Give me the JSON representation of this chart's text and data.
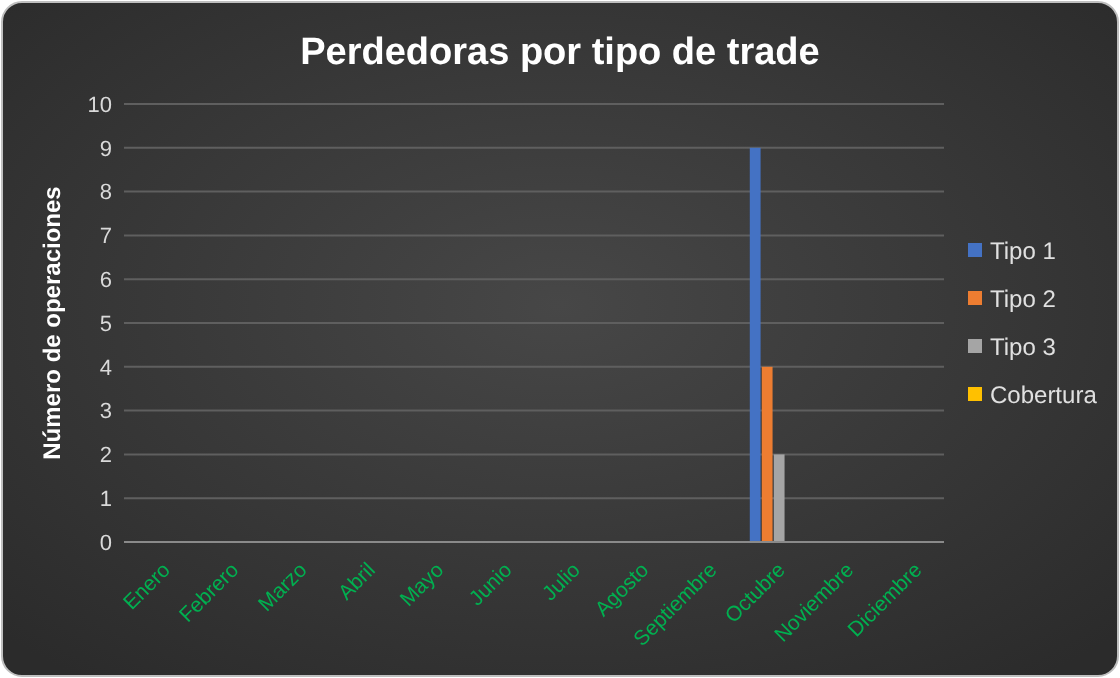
{
  "chart_data": {
    "type": "bar",
    "title": "Perdedoras por tipo de trade",
    "ylabel": "Número de operaciones",
    "categories": [
      "Enero",
      "Febrero",
      "Marzo",
      "Abril",
      "Mayo",
      "Junio",
      "Julio",
      "Agosto",
      "Septiembre",
      "Octubre",
      "Noviembre",
      "Diciembre"
    ],
    "series": [
      {
        "name": "Tipo 1",
        "color": "#4472c4",
        "values": [
          0,
          0,
          0,
          0,
          0,
          0,
          0,
          0,
          0,
          9,
          0,
          0
        ]
      },
      {
        "name": "Tipo 2",
        "color": "#ed7d31",
        "values": [
          0,
          0,
          0,
          0,
          0,
          0,
          0,
          0,
          0,
          4,
          0,
          0
        ]
      },
      {
        "name": "Tipo 3",
        "color": "#a5a5a5",
        "values": [
          0,
          0,
          0,
          0,
          0,
          0,
          0,
          0,
          0,
          2,
          0,
          0
        ]
      },
      {
        "name": "Cobertura",
        "color": "#ffc000",
        "values": [
          0,
          0,
          0,
          0,
          0,
          0,
          0,
          0,
          0,
          0,
          0,
          0
        ]
      }
    ],
    "ylim": [
      0,
      10
    ],
    "yticks": [
      0,
      1,
      2,
      3,
      4,
      5,
      6,
      7,
      8,
      9,
      10
    ],
    "grid": "y",
    "legend": "right"
  }
}
